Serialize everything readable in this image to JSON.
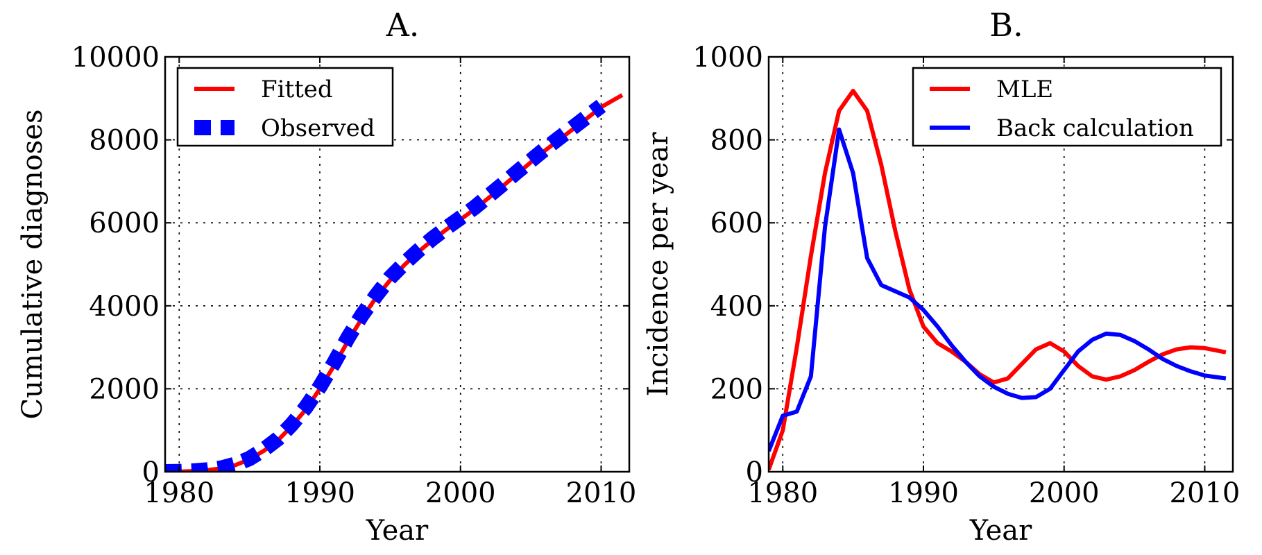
{
  "chart_data": [
    {
      "type": "line",
      "title": "A.",
      "xlabel": "Year",
      "ylabel": "Cumulative diagnoses",
      "xlim": [
        1979,
        2012
      ],
      "ylim": [
        0,
        10000
      ],
      "xticks": [
        1980,
        1990,
        2000,
        2010
      ],
      "yticks": [
        0,
        2000,
        4000,
        6000,
        8000,
        10000
      ],
      "grid": true,
      "legend_position": "upper-left",
      "series": [
        {
          "name": "Fitted",
          "style": "solid",
          "color": "#ff0000",
          "x": [
            1979,
            1980,
            1981,
            1982,
            1983,
            1984,
            1985,
            1986,
            1987,
            1988,
            1989,
            1990,
            1991,
            1992,
            1993,
            1994,
            1995,
            1996,
            1997,
            1998,
            1999,
            2000,
            2001,
            2002,
            2003,
            2004,
            2005,
            2006,
            2007,
            2008,
            2009,
            2010,
            2011.5
          ],
          "y": [
            0,
            5,
            15,
            40,
            80,
            160,
            300,
            500,
            750,
            1100,
            1500,
            2000,
            2550,
            3150,
            3700,
            4200,
            4620,
            4980,
            5300,
            5580,
            5840,
            6080,
            6330,
            6600,
            6880,
            7170,
            7460,
            7740,
            8000,
            8260,
            8520,
            8790,
            9080
          ]
        },
        {
          "name": "Observed",
          "style": "dashed",
          "color": "#0000ff",
          "x": [
            1979,
            1980,
            1981,
            1982,
            1983,
            1984,
            1985,
            1986,
            1987,
            1988,
            1989,
            1990,
            1991,
            1992,
            1993,
            1994,
            1995,
            1996,
            1997,
            1998,
            1999,
            2000,
            2001,
            2002,
            2003,
            2004,
            2005,
            2006,
            2007,
            2008,
            2009,
            2010
          ],
          "y": [
            0,
            5,
            20,
            45,
            90,
            180,
            320,
            530,
            790,
            1140,
            1550,
            2050,
            2620,
            3230,
            3780,
            4250,
            4680,
            5020,
            5330,
            5620,
            5880,
            6120,
            6370,
            6650,
            6930,
            7220,
            7500,
            7780,
            8040,
            8300,
            8560,
            8820
          ]
        }
      ]
    },
    {
      "type": "line",
      "title": "B.",
      "xlabel": "Year",
      "ylabel": "Incidence per year",
      "xlim": [
        1979,
        2012
      ],
      "ylim": [
        0,
        1000
      ],
      "xticks": [
        1980,
        1990,
        2000,
        2010
      ],
      "yticks": [
        0,
        200,
        400,
        600,
        800,
        1000
      ],
      "grid": true,
      "legend_position": "upper-right",
      "series": [
        {
          "name": "MLE",
          "style": "solid",
          "color": "#ff0000",
          "x": [
            1979,
            1980,
            1981,
            1982,
            1983,
            1984,
            1985,
            1986,
            1987,
            1988,
            1989,
            1990,
            1991,
            1992,
            1993,
            1994,
            1995,
            1996,
            1997,
            1998,
            1999,
            2000,
            2001,
            2002,
            2003,
            2004,
            2005,
            2006,
            2007,
            2008,
            2009,
            2010,
            2011.5
          ],
          "y": [
            5,
            100,
            300,
            520,
            720,
            870,
            918,
            870,
            740,
            580,
            440,
            350,
            310,
            290,
            265,
            235,
            215,
            225,
            260,
            295,
            310,
            290,
            255,
            230,
            222,
            230,
            245,
            265,
            283,
            295,
            300,
            298,
            288
          ]
        },
        {
          "name": "Back calculation",
          "style": "solid",
          "color": "#0000ff",
          "x": [
            1979,
            1980,
            1981,
            1982,
            1983,
            1984,
            1985,
            1986,
            1987,
            1988,
            1989,
            1990,
            1991,
            1992,
            1993,
            1994,
            1995,
            1996,
            1997,
            1998,
            1999,
            2000,
            2001,
            2002,
            2003,
            2004,
            2005,
            2006,
            2007,
            2008,
            2009,
            2010,
            2011.5
          ],
          "y": [
            50,
            135,
            145,
            230,
            590,
            825,
            720,
            515,
            450,
            435,
            420,
            390,
            350,
            305,
            265,
            230,
            205,
            188,
            178,
            180,
            200,
            245,
            290,
            318,
            333,
            330,
            315,
            295,
            272,
            255,
            242,
            232,
            225
          ]
        }
      ]
    }
  ]
}
